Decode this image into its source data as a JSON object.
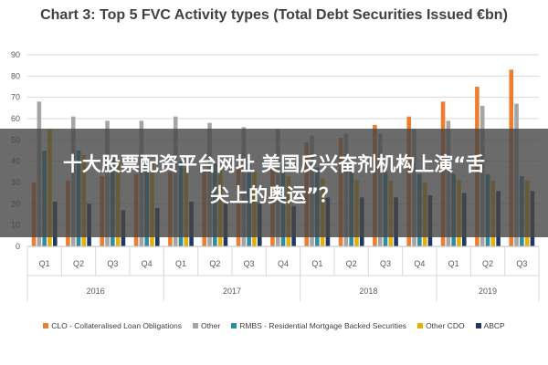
{
  "chart_data": {
    "type": "bar",
    "title": "Chart 3: Top 5 FVC Activity types (Total Debt Securities Issued €bn)",
    "xlabel": "",
    "ylabel": "",
    "ylim": [
      0,
      90
    ],
    "yticks": [
      "0",
      "10",
      "20",
      "30",
      "40",
      "50",
      "60",
      "70",
      "80",
      "90"
    ],
    "grid": true,
    "legend_position": "bottom",
    "categories": [
      "Q1",
      "Q2",
      "Q3",
      "Q4",
      "Q1",
      "Q2",
      "Q3",
      "Q4",
      "Q1",
      "Q2",
      "Q3",
      "Q4",
      "Q1",
      "Q2",
      "Q3"
    ],
    "year_groups": [
      {
        "label": "2016",
        "count": 4
      },
      {
        "label": "2017",
        "count": 4
      },
      {
        "label": "2018",
        "count": 4
      },
      {
        "label": "2019",
        "count": 3
      }
    ],
    "series": [
      {
        "name": "CLO - Collateralised Loan Obligations",
        "color": "#ED7D31",
        "values": [
          30,
          31,
          33,
          34,
          35,
          36,
          38,
          41,
          49,
          51,
          57,
          61,
          68,
          75,
          83
        ]
      },
      {
        "name": "Other",
        "color": "#A5A5A5",
        "values": [
          68,
          61,
          59,
          59,
          61,
          58,
          56,
          55,
          52,
          53,
          53,
          55,
          59,
          66,
          67
        ]
      },
      {
        "name": "RMBS - Residential Mortgage Backed Securities",
        "color": "#2F8BA8",
        "values": [
          45,
          45,
          42,
          40,
          40,
          39,
          39,
          38,
          37,
          36,
          35,
          34,
          34,
          34,
          33
        ]
      },
      {
        "name": "Other CDO",
        "color": "#E3B100",
        "values": [
          55,
          43,
          40,
          40,
          37,
          36,
          35,
          33,
          32,
          31,
          31,
          30,
          31,
          31,
          31
        ]
      },
      {
        "name": "ABCP",
        "color": "#203864",
        "values": [
          21,
          20,
          17,
          18,
          21,
          20,
          20,
          19,
          23,
          23,
          23,
          24,
          25,
          26,
          26
        ]
      }
    ]
  },
  "overlay": {
    "line1": "十大股票配资平台网址 美国反兴奋剂机构上演“舌",
    "line2": "尖上的奥运”？"
  }
}
